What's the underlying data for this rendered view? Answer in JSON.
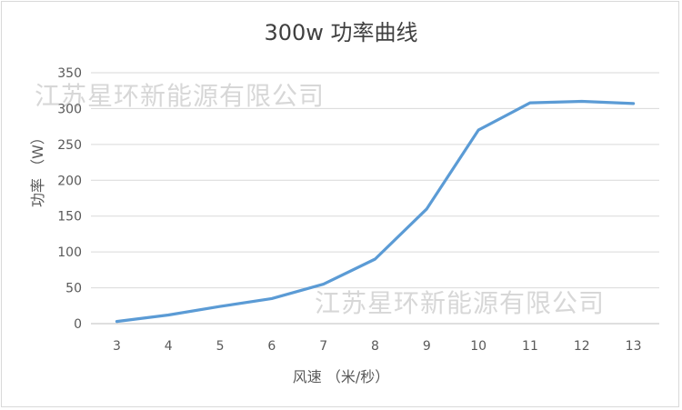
{
  "watermarks": [
    "江苏星环新能源有限公司",
    "江苏星环新能源有限公司"
  ],
  "chart_data": {
    "type": "line",
    "title": "300w 功率曲线",
    "xlabel": "风速 （米/秒）",
    "ylabel": "功率 （W）",
    "x": [
      3,
      4,
      5,
      6,
      7,
      8,
      9,
      10,
      11,
      12,
      13
    ],
    "series": [
      {
        "values": [
          3,
          12,
          24,
          35,
          55,
          90,
          160,
          270,
          308,
          310,
          307
        ],
        "color": "#5b9bd5"
      }
    ],
    "ylim": [
      0,
      350
    ],
    "yticks": [
      0,
      50,
      100,
      150,
      200,
      250,
      300,
      350
    ],
    "grid": true,
    "legend": "none"
  }
}
